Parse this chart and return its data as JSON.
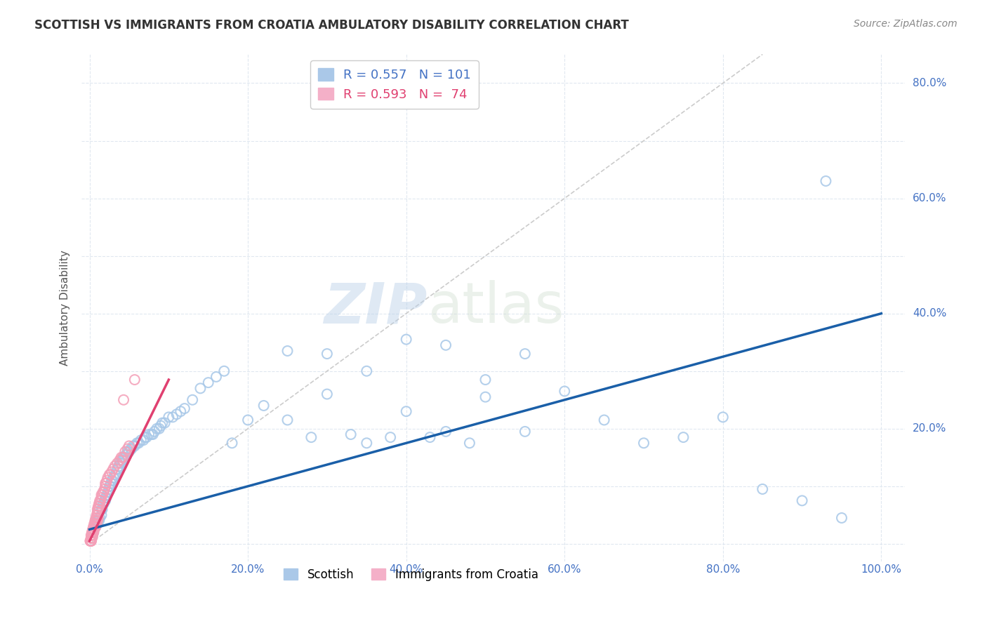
{
  "title": "SCOTTISH VS IMMIGRANTS FROM CROATIA AMBULATORY DISABILITY CORRELATION CHART",
  "source": "Source: ZipAtlas.com",
  "ylabel": "Ambulatory Disability",
  "x_tick_vals": [
    0.0,
    0.2,
    0.4,
    0.6,
    0.8,
    1.0
  ],
  "x_tick_labels": [
    "0.0%",
    "20.0%",
    "40.0%",
    "60.0%",
    "80.0%",
    "100.0%"
  ],
  "y_tick_vals": [
    0.0,
    0.1,
    0.2,
    0.3,
    0.4,
    0.5,
    0.6,
    0.7,
    0.8
  ],
  "y_tick_labels": [
    "",
    "",
    "20.0%",
    "",
    "40.0%",
    "",
    "60.0%",
    "",
    "80.0%"
  ],
  "xlim": [
    -0.01,
    1.03
  ],
  "ylim": [
    -0.03,
    0.85
  ],
  "watermark_zip": "ZIP",
  "watermark_atlas": "atlas",
  "scatter_blue_color": "#a8c8e8",
  "scatter_pink_color": "#f4a0b8",
  "trend_blue_color": "#1a5fa8",
  "trend_pink_color": "#e04070",
  "diagonal_color": "#cccccc",
  "tick_color": "#4472c4",
  "grid_color": "#e0e8f0",
  "blue_trend_x": [
    0.0,
    1.0
  ],
  "blue_trend_y": [
    0.025,
    0.4
  ],
  "pink_trend_x": [
    0.0,
    0.1
  ],
  "pink_trend_y": [
    0.005,
    0.285
  ],
  "blue_scatter_x": [
    0.005,
    0.008,
    0.01,
    0.01,
    0.012,
    0.013,
    0.015,
    0.015,
    0.016,
    0.017,
    0.018,
    0.019,
    0.02,
    0.02,
    0.021,
    0.022,
    0.023,
    0.024,
    0.025,
    0.025,
    0.026,
    0.027,
    0.028,
    0.029,
    0.03,
    0.031,
    0.032,
    0.033,
    0.035,
    0.036,
    0.037,
    0.038,
    0.04,
    0.041,
    0.042,
    0.043,
    0.045,
    0.046,
    0.047,
    0.048,
    0.05,
    0.052,
    0.053,
    0.055,
    0.057,
    0.06,
    0.062,
    0.065,
    0.068,
    0.07,
    0.072,
    0.075,
    0.078,
    0.08,
    0.082,
    0.085,
    0.088,
    0.09,
    0.092,
    0.095,
    0.1,
    0.105,
    0.11,
    0.115,
    0.12,
    0.13,
    0.14,
    0.15,
    0.16,
    0.17,
    0.18,
    0.2,
    0.22,
    0.25,
    0.28,
    0.3,
    0.33,
    0.35,
    0.38,
    0.4,
    0.43,
    0.45,
    0.48,
    0.5,
    0.55,
    0.6,
    0.65,
    0.7,
    0.75,
    0.8,
    0.85,
    0.9,
    0.25,
    0.3,
    0.35,
    0.4,
    0.45,
    0.5,
    0.55,
    0.95,
    0.93
  ],
  "blue_scatter_y": [
    0.02,
    0.03,
    0.035,
    0.04,
    0.04,
    0.045,
    0.05,
    0.06,
    0.06,
    0.07,
    0.07,
    0.075,
    0.075,
    0.08,
    0.08,
    0.085,
    0.09,
    0.09,
    0.095,
    0.1,
    0.1,
    0.105,
    0.11,
    0.11,
    0.115,
    0.115,
    0.12,
    0.12,
    0.13,
    0.13,
    0.135,
    0.14,
    0.14,
    0.145,
    0.145,
    0.15,
    0.15,
    0.155,
    0.155,
    0.16,
    0.16,
    0.165,
    0.165,
    0.17,
    0.17,
    0.175,
    0.175,
    0.18,
    0.18,
    0.185,
    0.185,
    0.19,
    0.19,
    0.19,
    0.195,
    0.2,
    0.2,
    0.205,
    0.21,
    0.21,
    0.22,
    0.22,
    0.225,
    0.23,
    0.235,
    0.25,
    0.27,
    0.28,
    0.29,
    0.3,
    0.175,
    0.215,
    0.24,
    0.215,
    0.185,
    0.26,
    0.19,
    0.175,
    0.185,
    0.23,
    0.185,
    0.195,
    0.175,
    0.255,
    0.195,
    0.265,
    0.215,
    0.175,
    0.185,
    0.22,
    0.095,
    0.075,
    0.335,
    0.33,
    0.3,
    0.355,
    0.345,
    0.285,
    0.33,
    0.045,
    0.63
  ],
  "pink_scatter_x": [
    0.001,
    0.002,
    0.002,
    0.003,
    0.003,
    0.004,
    0.004,
    0.005,
    0.005,
    0.006,
    0.006,
    0.007,
    0.007,
    0.008,
    0.008,
    0.009,
    0.009,
    0.01,
    0.01,
    0.01,
    0.011,
    0.011,
    0.012,
    0.012,
    0.013,
    0.013,
    0.014,
    0.015,
    0.015,
    0.016,
    0.017,
    0.018,
    0.019,
    0.02,
    0.02,
    0.021,
    0.022,
    0.023,
    0.025,
    0.026,
    0.028,
    0.03,
    0.032,
    0.035,
    0.038,
    0.04,
    0.042,
    0.045,
    0.048,
    0.05,
    0.002,
    0.003,
    0.004,
    0.005,
    0.006,
    0.007,
    0.008,
    0.009,
    0.01,
    0.011,
    0.001,
    0.002,
    0.003,
    0.004,
    0.005,
    0.006,
    0.002,
    0.003,
    0.004,
    0.005,
    0.001,
    0.002,
    0.043,
    0.057
  ],
  "pink_scatter_y": [
    0.005,
    0.01,
    0.015,
    0.015,
    0.02,
    0.02,
    0.025,
    0.025,
    0.03,
    0.03,
    0.035,
    0.035,
    0.04,
    0.04,
    0.045,
    0.045,
    0.05,
    0.05,
    0.055,
    0.06,
    0.06,
    0.065,
    0.065,
    0.07,
    0.07,
    0.075,
    0.075,
    0.08,
    0.085,
    0.085,
    0.09,
    0.09,
    0.095,
    0.1,
    0.105,
    0.105,
    0.11,
    0.115,
    0.12,
    0.12,
    0.125,
    0.13,
    0.135,
    0.14,
    0.145,
    0.15,
    0.15,
    0.16,
    0.165,
    0.17,
    0.005,
    0.01,
    0.015,
    0.02,
    0.025,
    0.03,
    0.03,
    0.035,
    0.04,
    0.045,
    0.005,
    0.01,
    0.015,
    0.02,
    0.025,
    0.03,
    0.005,
    0.01,
    0.015,
    0.02,
    0.005,
    0.005,
    0.25,
    0.285
  ],
  "background_color": "#ffffff"
}
